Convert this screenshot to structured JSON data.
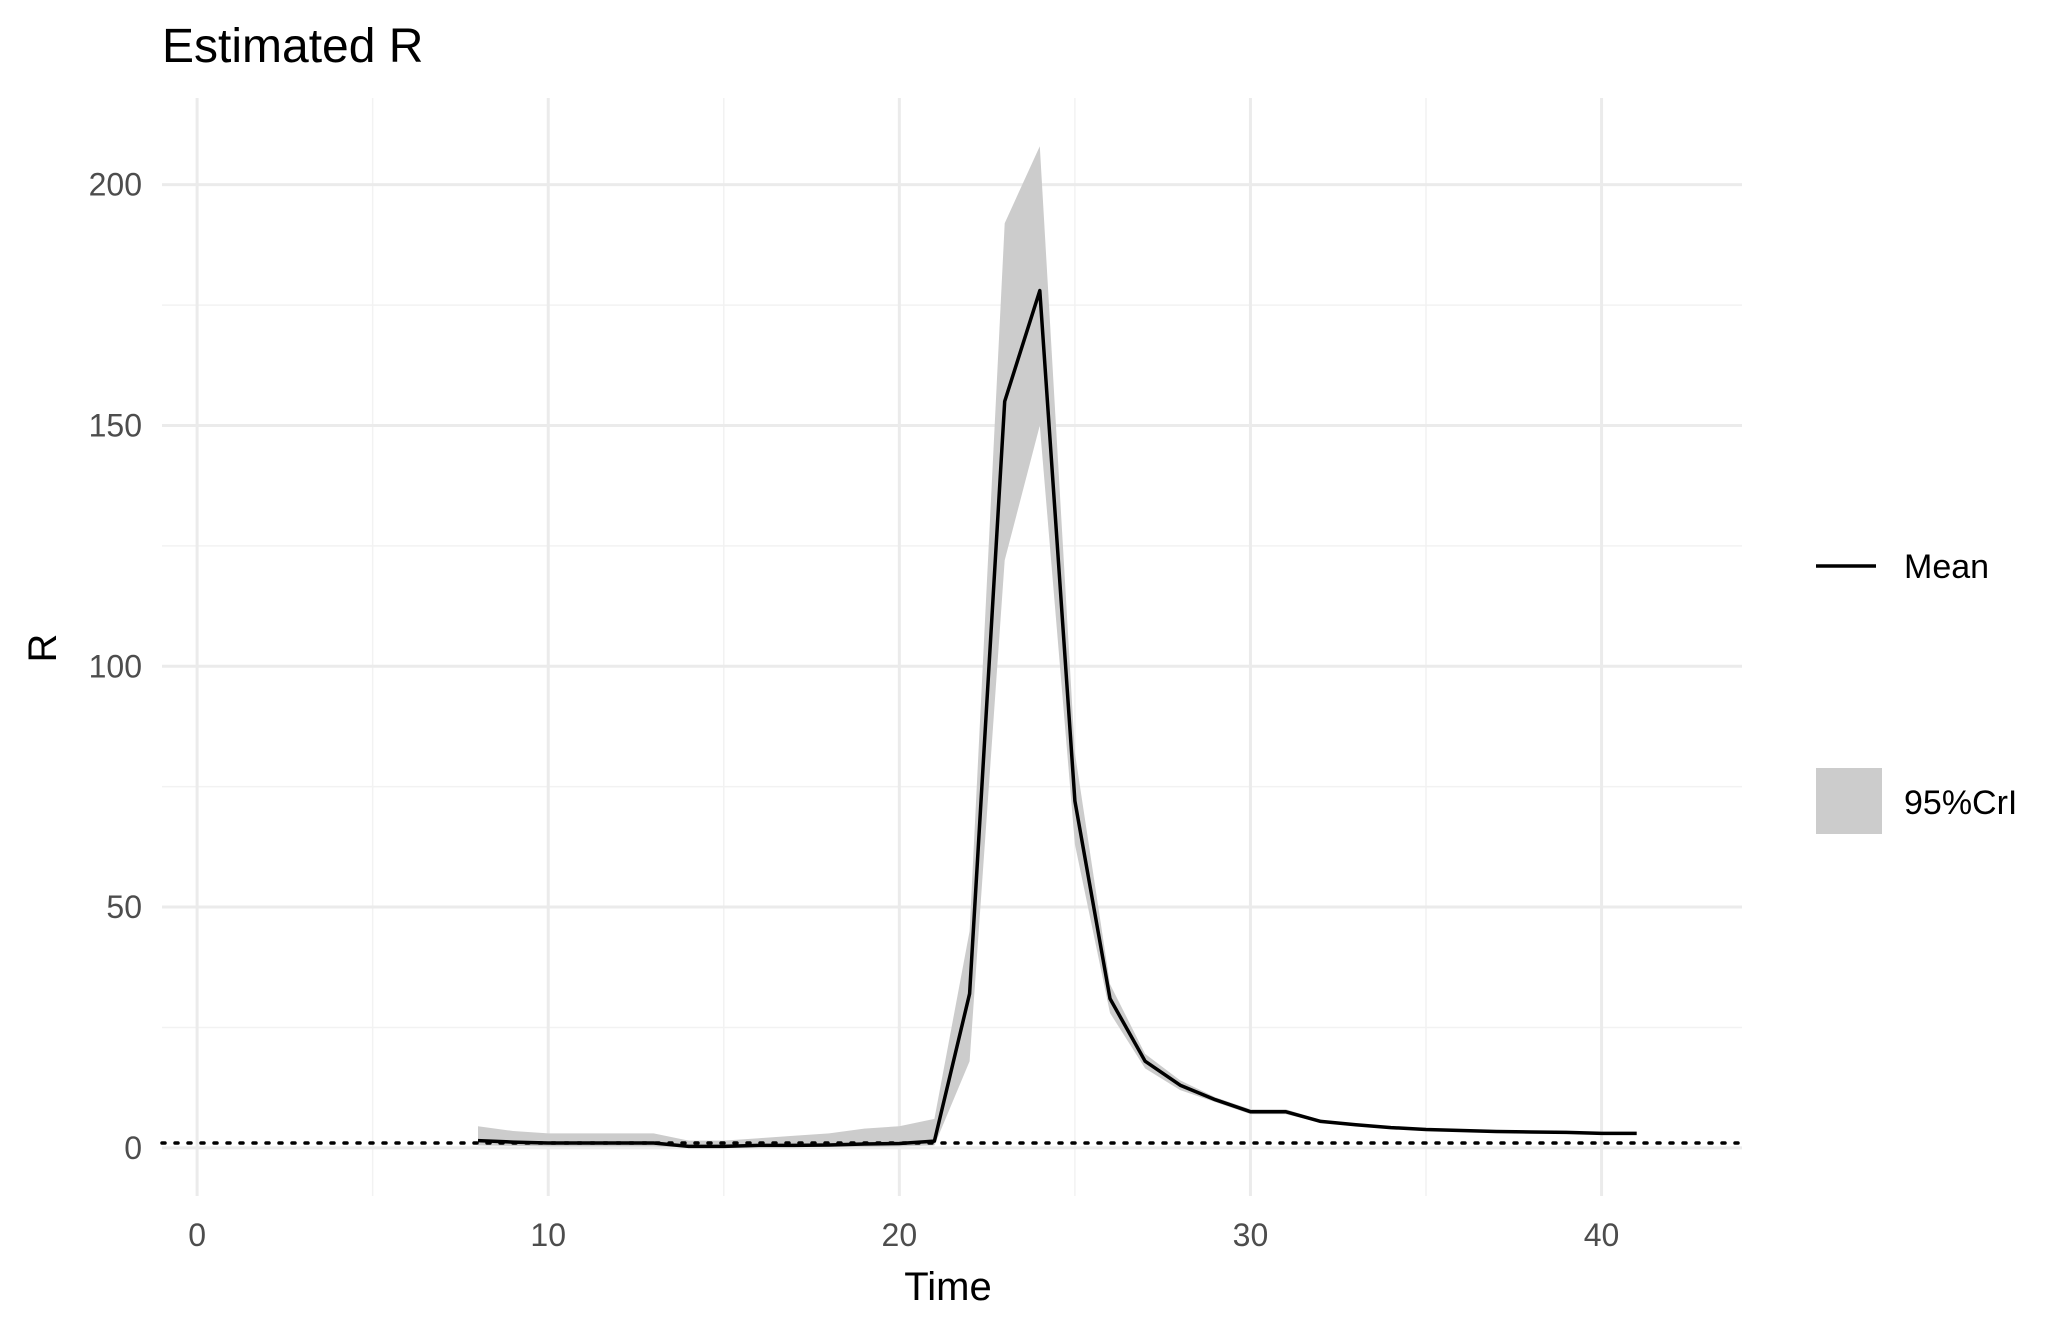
{
  "chart_data": {
    "type": "line",
    "title": "Estimated R",
    "xlabel": "Time",
    "ylabel": "R",
    "xlim": [
      -1,
      44
    ],
    "ylim": [
      -10,
      218
    ],
    "x_ticks": [
      0,
      10,
      20,
      30,
      40
    ],
    "y_ticks": [
      0,
      50,
      100,
      150,
      200
    ],
    "grid": true,
    "legend_position": "right",
    "reference_line": {
      "y": 1,
      "style": "dotted"
    },
    "series": [
      {
        "name": "Mean",
        "kind": "line",
        "color": "#000000",
        "x": [
          8,
          9,
          10,
          11,
          12,
          13,
          14,
          15,
          16,
          17,
          18,
          19,
          20,
          21,
          22,
          23,
          24,
          25,
          26,
          27,
          28,
          29,
          30,
          31,
          32,
          33,
          34,
          35,
          36,
          37,
          38,
          39,
          40,
          41
        ],
        "y": [
          1.5,
          1.2,
          1.0,
          1.0,
          1.0,
          1.0,
          0.3,
          0.3,
          0.5,
          0.5,
          0.6,
          0.8,
          0.9,
          1.4,
          32,
          155,
          178,
          72,
          31,
          18,
          13,
          10,
          7.5,
          7.5,
          5.5,
          4.8,
          4.2,
          3.8,
          3.6,
          3.4,
          3.3,
          3.2,
          3.0,
          3.0
        ]
      },
      {
        "name": "95%CrI",
        "kind": "band",
        "color": "#cccccc",
        "x": [
          8,
          9,
          10,
          11,
          12,
          13,
          14,
          15,
          16,
          17,
          18,
          19,
          20,
          21,
          22,
          23,
          24,
          25,
          26,
          27,
          28,
          29,
          30,
          31,
          32,
          33,
          34,
          35,
          36,
          37,
          38,
          39,
          40,
          41
        ],
        "lower": [
          0.5,
          0.4,
          0.3,
          0.3,
          0.3,
          0.3,
          0.1,
          0.1,
          0.2,
          0.2,
          0.2,
          0.2,
          0.3,
          0.5,
          18,
          122,
          150,
          63,
          28,
          16.5,
          12,
          9.5,
          7,
          7,
          5.2,
          4.5,
          4,
          3.6,
          3.4,
          3.2,
          3.1,
          3,
          2.8,
          2.8
        ],
        "upper": [
          4.5,
          3.5,
          3.0,
          3.0,
          3.0,
          3.0,
          1.5,
          1.5,
          2.0,
          2.5,
          3.0,
          4.0,
          4.5,
          6.0,
          45,
          192,
          208,
          82,
          34,
          19.5,
          14,
          10.5,
          8,
          8,
          5.8,
          5.1,
          4.4,
          4,
          3.8,
          3.6,
          3.5,
          3.4,
          3.2,
          3.2
        ]
      }
    ],
    "legend": [
      {
        "label": "Mean",
        "kind": "line"
      },
      {
        "label": "95%CrI",
        "kind": "band"
      }
    ]
  }
}
